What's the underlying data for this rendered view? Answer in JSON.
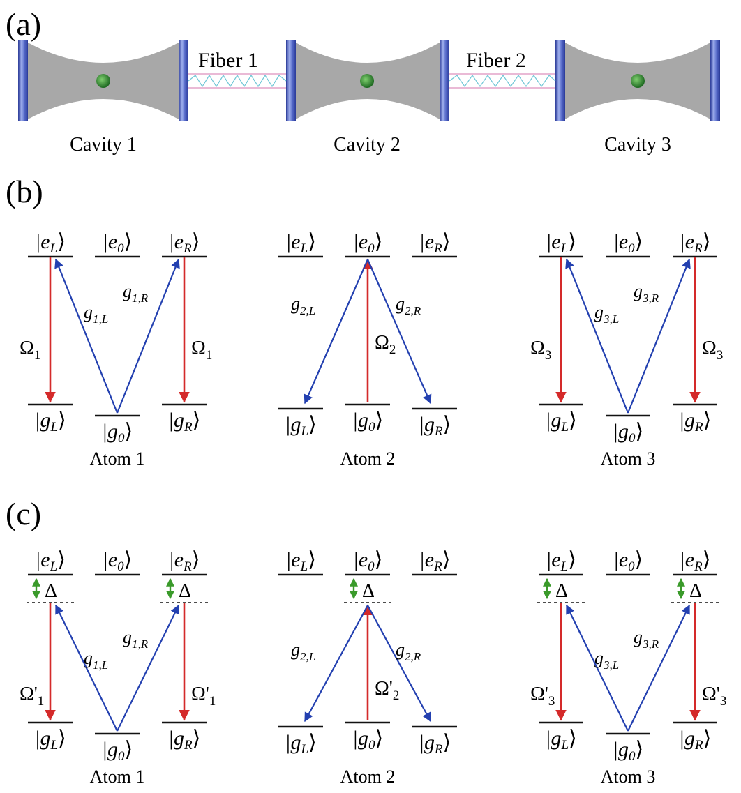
{
  "panel_a": {
    "label": "(a)",
    "cavities": [
      "Cavity 1",
      "Cavity 2",
      "Cavity 3"
    ],
    "fibers": [
      "Fiber 1",
      "Fiber 2"
    ]
  },
  "panel_b": {
    "label": "(b)",
    "atoms": [
      {
        "name": "Atom 1",
        "coupling_left": "g1,L",
        "coupling_right": "g1,R",
        "pump_left": "Ω1",
        "pump_right": "Ω1"
      },
      {
        "name": "Atom 2",
        "coupling_left": "g2,L",
        "coupling_right": "g2,R",
        "pump_center": "Ω2"
      },
      {
        "name": "Atom 3",
        "coupling_left": "g3,L",
        "coupling_right": "g3,R",
        "pump_left": "Ω3",
        "pump_right": "Ω3"
      }
    ]
  },
  "panel_c": {
    "label": "(c)",
    "detuning": "Δ",
    "atoms": [
      {
        "name": "Atom 1",
        "coupling_left": "g1,L",
        "coupling_right": "g1,R",
        "pump_left": "Ω'1",
        "pump_right": "Ω'1"
      },
      {
        "name": "Atom 2",
        "coupling_left": "g2,L",
        "coupling_right": "g2,R",
        "pump_center": "Ω'2"
      },
      {
        "name": "Atom 3",
        "coupling_left": "g3,L",
        "coupling_right": "g3,R",
        "pump_left": "Ω'3",
        "pump_right": "Ω'3"
      }
    ]
  },
  "levels": {
    "excited": [
      "eL",
      "e0",
      "eR"
    ],
    "ground": [
      "gL",
      "g0",
      "gR"
    ]
  },
  "colors": {
    "pump": "#d42a2a",
    "coupling": "#2340b0",
    "detuning": "#3a9a2a",
    "cavity_body": "#a8a8a8",
    "mirror": "#3a4fb0",
    "atom_sphere": "#2f8a2f"
  }
}
